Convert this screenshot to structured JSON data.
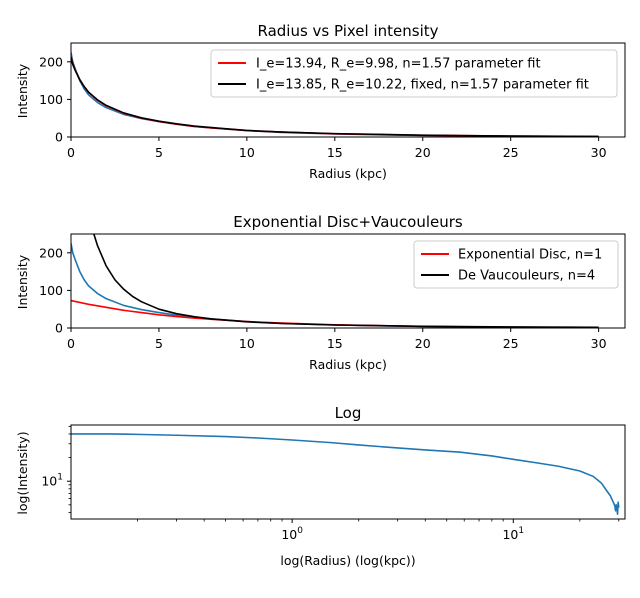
{
  "chart_data": [
    {
      "type": "line",
      "title": "Radius vs Pixel intensity",
      "xlabel": "Radius (kpc)",
      "ylabel": "Intensity",
      "xlim": [
        0,
        31.5
      ],
      "ylim": [
        0,
        250
      ],
      "xticks": [
        0,
        5,
        10,
        15,
        20,
        25,
        30
      ],
      "yticks": [
        0,
        100,
        200
      ],
      "legend_position": "top-right",
      "series": [
        {
          "color": "#1f77b4",
          "x": [
            0,
            0.1,
            0.25,
            0.5,
            0.75,
            1.0,
            1.5,
            2.0,
            3.0,
            4.0,
            5.0,
            6.0,
            7.0,
            8.0,
            10.0,
            12.0,
            15.0,
            20.0,
            25.0,
            30.0
          ],
          "y": [
            225,
            200,
            180,
            150,
            128,
            112,
            92,
            78,
            60,
            49,
            41,
            34,
            28,
            24,
            17,
            12,
            8,
            4,
            2,
            0.5
          ]
        },
        {
          "name": "I_e=13.94, R_e=9.98, n=1.57 parameter fit",
          "color": "#ff0000",
          "x": [
            0,
            0.1,
            0.25,
            0.5,
            0.75,
            1.0,
            1.5,
            2.0,
            3.0,
            4.0,
            5.0,
            6.0,
            7.0,
            8.0,
            10.0,
            12.0,
            15.0,
            20.0,
            25.0,
            30.0
          ],
          "y": [
            215,
            195,
            177,
            153,
            134,
            119,
            98,
            83,
            63,
            50,
            41,
            34,
            28,
            24,
            17,
            13,
            8.5,
            4.5,
            2.4,
            1.3
          ]
        },
        {
          "name": "I_e=13.85, R_e=10.22, fixed, n=1.57 parameter fit",
          "color": "#000000",
          "x": [
            0,
            0.1,
            0.25,
            0.5,
            0.75,
            1.0,
            1.5,
            2.0,
            3.0,
            4.0,
            5.0,
            6.0,
            7.0,
            8.0,
            10.0,
            12.0,
            15.0,
            20.0,
            25.0,
            30.0
          ],
          "y": [
            212,
            193,
            176,
            152,
            134,
            119,
            99,
            84,
            64,
            51,
            42,
            35,
            29,
            25,
            17.5,
            13,
            9,
            4.8,
            2.6,
            1.4
          ]
        }
      ]
    },
    {
      "type": "line",
      "title": "Exponential Disc+Vaucouleurs",
      "xlabel": "Radius (kpc)",
      "ylabel": "Intensity",
      "xlim": [
        0,
        31.5
      ],
      "ylim": [
        0,
        250
      ],
      "xticks": [
        0,
        5,
        10,
        15,
        20,
        25,
        30
      ],
      "yticks": [
        0,
        100,
        200
      ],
      "legend_position": "top-right",
      "series": [
        {
          "color": "#1f77b4",
          "x": [
            0,
            0.1,
            0.25,
            0.5,
            0.75,
            1.0,
            1.5,
            2.0,
            3.0,
            4.0,
            5.0,
            6.0,
            7.0,
            8.0,
            10.0,
            12.0,
            15.0,
            20.0,
            25.0,
            30.0
          ],
          "y": [
            225,
            200,
            180,
            150,
            128,
            112,
            92,
            78,
            60,
            49,
            41,
            34,
            28,
            24,
            17,
            12,
            8,
            4,
            2,
            0.5
          ]
        },
        {
          "name": "Exponential Disc, n=1",
          "color": "#ff0000",
          "x": [
            0,
            1,
            2,
            3,
            4,
            5,
            6,
            7,
            8,
            10,
            12,
            15,
            20,
            25,
            30
          ],
          "y": [
            73,
            63,
            55,
            47,
            41,
            35,
            30.5,
            26.5,
            23,
            17,
            13,
            8.5,
            4.3,
            2.2,
            1.1
          ]
        },
        {
          "name": "De Vaucouleurs, n=4",
          "color": "#000000",
          "x": [
            1.3,
            1.5,
            2.0,
            2.5,
            3.0,
            3.5,
            4.0,
            5.0,
            6.0,
            7.0,
            8.0,
            10.0,
            12.0,
            15.0,
            20.0,
            25.0,
            30.0
          ],
          "y": [
            250,
            220,
            165,
            128,
            103,
            84,
            70,
            50,
            38,
            30,
            24,
            16.5,
            12,
            8,
            4.5,
            2.8,
            1.8
          ]
        }
      ]
    },
    {
      "type": "line",
      "title": "Log",
      "xlabel": "log(Radius) (log(kpc))",
      "ylabel": "log(Intensity)",
      "xscale": "log",
      "yscale": "log",
      "xlim": [
        0.1,
        32
      ],
      "ylim": [
        3.3,
        52
      ],
      "xticks": [
        1,
        10
      ],
      "xtick_labels": [
        "10^0",
        "10^1"
      ],
      "yticks": [
        10
      ],
      "ytick_labels": [
        "10^1"
      ],
      "series": [
        {
          "color": "#1f77b4",
          "x": [
            0.1,
            0.15,
            0.2,
            0.3,
            0.5,
            0.7,
            1.0,
            1.5,
            2.0,
            3.0,
            4.0,
            5.0,
            5.7,
            6.5,
            8.0,
            10.0,
            13.0,
            16.0,
            20.0,
            23.0,
            25.0,
            26.5,
            27.5,
            28.0,
            28.5,
            28.8,
            29.0,
            29.2,
            29.4,
            29.6,
            29.8,
            30.0
          ],
          "y": [
            40,
            40,
            39.5,
            38.5,
            37,
            35.5,
            33.5,
            31,
            29,
            26.5,
            25,
            24,
            23.5,
            22.5,
            21,
            19,
            17,
            15.5,
            13.5,
            11.5,
            9.5,
            7.5,
            6.5,
            5.8,
            5.2,
            4.8,
            4.2,
            5.0,
            4.5,
            3.8,
            5.4,
            4.6
          ]
        }
      ]
    }
  ]
}
